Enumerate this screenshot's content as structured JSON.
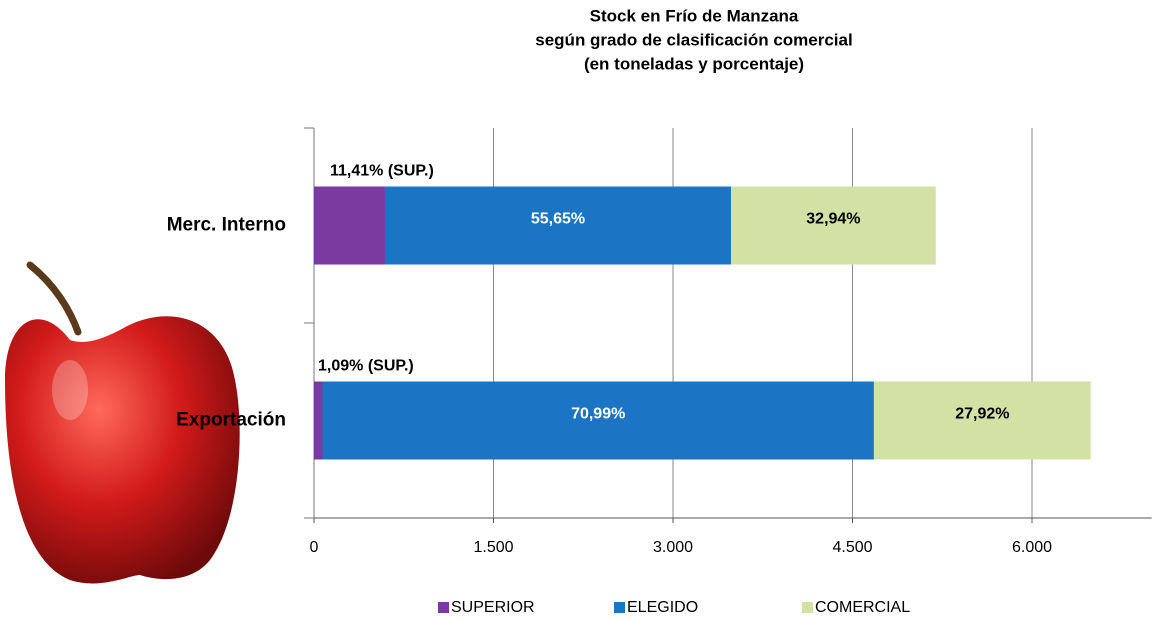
{
  "chart_data": {
    "type": "stacked-barh",
    "title": [
      "Stock en Frío de Manzana",
      "según grado de clasificación  comercial",
      "(en toneladas y porcentaje)"
    ],
    "categories": [
      "Merc. Interno",
      "Exportación"
    ],
    "series": [
      {
        "name": "SUPERIOR",
        "color": "#7a3aa0",
        "values": [
          593,
          71
        ],
        "percent_labels": [
          "11,41%  (SUP.)",
          "1,09% (SUP.)"
        ]
      },
      {
        "name": "ELEGIDO",
        "color": "#1c74c4",
        "values": [
          2892,
          4608
        ],
        "percent_labels": [
          "55,65%",
          "70,99%"
        ]
      },
      {
        "name": "COMERCIAL",
        "color": "#d3e2a4",
        "values": [
          1711,
          1812
        ],
        "percent_labels": [
          "32,94%",
          "27,92%"
        ]
      }
    ],
    "xlim": [
      0,
      7000
    ],
    "xticks": [
      0,
      {
        "value": 1500,
        "label": "1.500"
      },
      {
        "value": 3000,
        "label": "3.000"
      },
      {
        "value": 4500,
        "label": "4.500"
      },
      {
        "value": 6000,
        "label": "6.000"
      }
    ],
    "grid": true,
    "legend": "bottom"
  }
}
